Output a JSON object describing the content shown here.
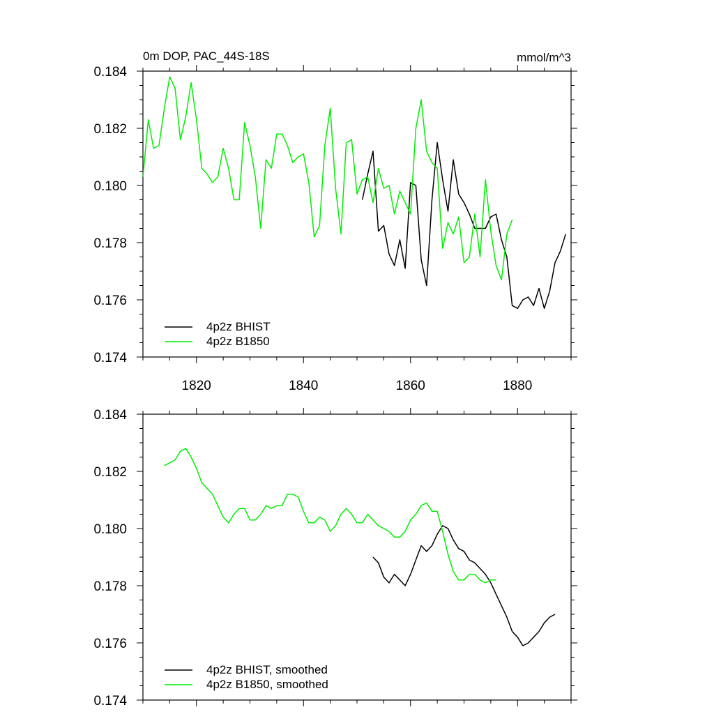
{
  "chart_data": [
    {
      "type": "line",
      "title": "0m DOP, PAC_44S-18S",
      "units": "mmol/m^3",
      "xlim": [
        1810,
        1890
      ],
      "ylim": [
        0.174,
        0.184
      ],
      "x_ticks": [
        1820,
        1840,
        1860,
        1880
      ],
      "x_tick_labels": [
        "1820",
        "1840",
        "1860",
        "1880"
      ],
      "y_ticks": [
        0.174,
        0.176,
        0.178,
        0.18,
        0.182,
        0.184
      ],
      "y_tick_labels": [
        "0.174",
        "0.176",
        "0.178",
        "0.180",
        "0.182",
        "0.184"
      ],
      "legend": "bottom-left",
      "series": [
        {
          "name": "4p2z BHIST",
          "color": "#000000",
          "x": [
            1851,
            1852,
            1853,
            1854,
            1855,
            1856,
            1857,
            1858,
            1859,
            1860,
            1861,
            1862,
            1863,
            1864,
            1865,
            1866,
            1867,
            1868,
            1869,
            1870,
            1871,
            1872,
            1873,
            1874,
            1875,
            1876,
            1877,
            1878,
            1879,
            1880,
            1881,
            1882,
            1883,
            1884,
            1885,
            1886,
            1887,
            1888,
            1889
          ],
          "y": [
            0.1795,
            0.1804,
            0.1812,
            0.1784,
            0.1786,
            0.1776,
            0.1772,
            0.1781,
            0.1771,
            0.1801,
            0.18,
            0.1774,
            0.1765,
            0.1795,
            0.1815,
            0.1802,
            0.1791,
            0.1809,
            0.1797,
            0.1794,
            0.179,
            0.1785,
            0.1785,
            0.1785,
            0.1789,
            0.179,
            0.1781,
            0.1775,
            0.1758,
            0.1757,
            0.176,
            0.1761,
            0.1758,
            0.1764,
            0.1757,
            0.1763,
            0.1773,
            0.1777,
            0.1783
          ]
        },
        {
          "name": "4p2z B1850",
          "color": "#00ee00",
          "x": [
            1810,
            1811,
            1812,
            1813,
            1814,
            1815,
            1816,
            1817,
            1818,
            1819,
            1820,
            1821,
            1822,
            1823,
            1824,
            1825,
            1826,
            1827,
            1828,
            1829,
            1830,
            1831,
            1832,
            1833,
            1834,
            1835,
            1836,
            1837,
            1838,
            1839,
            1840,
            1841,
            1842,
            1843,
            1844,
            1845,
            1846,
            1847,
            1848,
            1849,
            1850,
            1851,
            1852,
            1853,
            1854,
            1855,
            1856,
            1857,
            1858,
            1859,
            1860,
            1861,
            1862,
            1863,
            1864,
            1865,
            1866,
            1867,
            1868,
            1869,
            1870,
            1871,
            1872,
            1873,
            1874,
            1875,
            1876,
            1877,
            1878,
            1879
          ],
          "y": [
            0.1803,
            0.1823,
            0.1813,
            0.1814,
            0.1827,
            0.1838,
            0.1834,
            0.1816,
            0.1824,
            0.1836,
            0.1823,
            0.1806,
            0.1804,
            0.1801,
            0.1803,
            0.1813,
            0.1806,
            0.1795,
            0.1795,
            0.1822,
            0.1814,
            0.1803,
            0.1785,
            0.1809,
            0.1806,
            0.1818,
            0.1818,
            0.1814,
            0.1808,
            0.181,
            0.1811,
            0.1801,
            0.1782,
            0.1786,
            0.1814,
            0.1827,
            0.1799,
            0.1783,
            0.1815,
            0.1816,
            0.1797,
            0.1802,
            0.1803,
            0.1794,
            0.1806,
            0.1799,
            0.18,
            0.179,
            0.1798,
            0.1794,
            0.179,
            0.182,
            0.183,
            0.1812,
            0.1808,
            0.1806,
            0.1778,
            0.1787,
            0.1783,
            0.1789,
            0.1773,
            0.1775,
            0.179,
            0.1775,
            0.1802,
            0.1784,
            0.1772,
            0.1767,
            0.1783,
            0.1788
          ]
        }
      ]
    },
    {
      "type": "line",
      "title": "",
      "xlim": [
        1810,
        1890
      ],
      "ylim": [
        0.174,
        0.184
      ],
      "x_ticks": [
        1820,
        1840,
        1860,
        1880
      ],
      "y_ticks": [
        0.174,
        0.176,
        0.178,
        0.18,
        0.182,
        0.184
      ],
      "y_tick_labels": [
        "0.174",
        "0.176",
        "0.178",
        "0.180",
        "0.182",
        "0.184"
      ],
      "legend": "bottom-left",
      "series": [
        {
          "name": "4p2z BHIST, smoothed",
          "color": "#000000",
          "x": [
            1853,
            1854,
            1855,
            1856,
            1857,
            1858,
            1859,
            1860,
            1861,
            1862,
            1863,
            1864,
            1865,
            1866,
            1867,
            1868,
            1869,
            1870,
            1871,
            1872,
            1873,
            1874,
            1875,
            1876,
            1877,
            1878,
            1879,
            1880,
            1881,
            1882,
            1883,
            1884,
            1885,
            1886,
            1887
          ],
          "y": [
            0.179,
            0.1788,
            0.1783,
            0.1781,
            0.1784,
            0.1782,
            0.178,
            0.1784,
            0.1789,
            0.1794,
            0.1792,
            0.1794,
            0.1798,
            0.1801,
            0.18,
            0.1796,
            0.1793,
            0.1792,
            0.1789,
            0.1788,
            0.1786,
            0.1784,
            0.1781,
            0.1777,
            0.1773,
            0.1769,
            0.1764,
            0.1762,
            0.1759,
            0.176,
            0.1762,
            0.1764,
            0.1767,
            0.1769,
            0.177
          ]
        },
        {
          "name": "4p2z B1850, smoothed",
          "color": "#00ee00",
          "x": [
            1814,
            1815,
            1816,
            1817,
            1818,
            1819,
            1820,
            1821,
            1822,
            1823,
            1824,
            1825,
            1826,
            1827,
            1828,
            1829,
            1830,
            1831,
            1832,
            1833,
            1834,
            1835,
            1836,
            1837,
            1838,
            1839,
            1840,
            1841,
            1842,
            1843,
            1844,
            1845,
            1846,
            1847,
            1848,
            1849,
            1850,
            1851,
            1852,
            1853,
            1854,
            1855,
            1856,
            1857,
            1858,
            1859,
            1860,
            1861,
            1862,
            1863,
            1864,
            1865,
            1866,
            1867,
            1868,
            1869,
            1870,
            1871,
            1872,
            1873,
            1874,
            1875,
            1876
          ],
          "y": [
            0.1822,
            0.1823,
            0.1824,
            0.1827,
            0.1828,
            0.1825,
            0.1821,
            0.1816,
            0.1814,
            0.1812,
            0.1808,
            0.1804,
            0.1802,
            0.1805,
            0.1807,
            0.1807,
            0.1803,
            0.1803,
            0.1805,
            0.1808,
            0.1807,
            0.1808,
            0.1808,
            0.1812,
            0.1812,
            0.1811,
            0.1806,
            0.1802,
            0.1802,
            0.1804,
            0.1803,
            0.1799,
            0.1801,
            0.1805,
            0.1807,
            0.1805,
            0.1802,
            0.1802,
            0.1805,
            0.1803,
            0.1801,
            0.18,
            0.1799,
            0.1797,
            0.1797,
            0.1799,
            0.1803,
            0.1805,
            0.1808,
            0.1809,
            0.1806,
            0.1806,
            0.1799,
            0.1791,
            0.1785,
            0.1782,
            0.1782,
            0.1784,
            0.1784,
            0.1782,
            0.1781,
            0.1782,
            0.1782
          ]
        }
      ]
    }
  ]
}
